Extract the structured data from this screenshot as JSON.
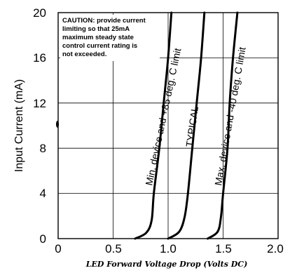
{
  "chart_data": {
    "type": "line",
    "title": "",
    "xlabel": "LED Forward Voltage Drop (Volts DC)",
    "ylabel": "Input Current (mA)",
    "xlim": [
      0,
      2.0
    ],
    "ylim": [
      0,
      20
    ],
    "x_ticks": [
      "0",
      "0.5",
      "1.0",
      "1.5",
      "2.0"
    ],
    "y_ticks": [
      "0",
      "4",
      "8",
      "12",
      "16",
      "20"
    ],
    "x_tick_values": [
      0,
      0.5,
      1.0,
      1.5,
      2.0
    ],
    "y_tick_values": [
      0,
      4,
      8,
      12,
      16,
      20
    ],
    "grid": true,
    "series": [
      {
        "name": "Min. device and +85 deg. C limit",
        "points": [
          [
            0.7,
            0
          ],
          [
            0.8,
            0.5
          ],
          [
            0.85,
            1.6
          ],
          [
            0.87,
            4
          ],
          [
            0.92,
            8
          ],
          [
            0.96,
            12
          ],
          [
            1.0,
            16
          ],
          [
            1.03,
            20
          ]
        ]
      },
      {
        "name": "TYPICAL",
        "points": [
          [
            1.0,
            0
          ],
          [
            1.1,
            0.6
          ],
          [
            1.15,
            1.9
          ],
          [
            1.18,
            4
          ],
          [
            1.22,
            8
          ],
          [
            1.26,
            12
          ],
          [
            1.3,
            16
          ],
          [
            1.33,
            20
          ]
        ]
      },
      {
        "name": "Max. device and -40 deg. C limit",
        "points": [
          [
            1.36,
            0
          ],
          [
            1.45,
            0.6
          ],
          [
            1.48,
            1.9
          ],
          [
            1.5,
            4
          ],
          [
            1.54,
            8
          ],
          [
            1.56,
            12
          ],
          [
            1.59,
            16
          ],
          [
            1.63,
            20
          ]
        ]
      }
    ],
    "annotation": "CAUTION: provide current limiting so that 25mA maximum steady state control current rating is not exceeded.",
    "annotation_lines": [
      "CAUTION: provide current",
      "limiting so that 25mA",
      "maximum steady state",
      "control current rating is",
      "not exceeded."
    ]
  }
}
